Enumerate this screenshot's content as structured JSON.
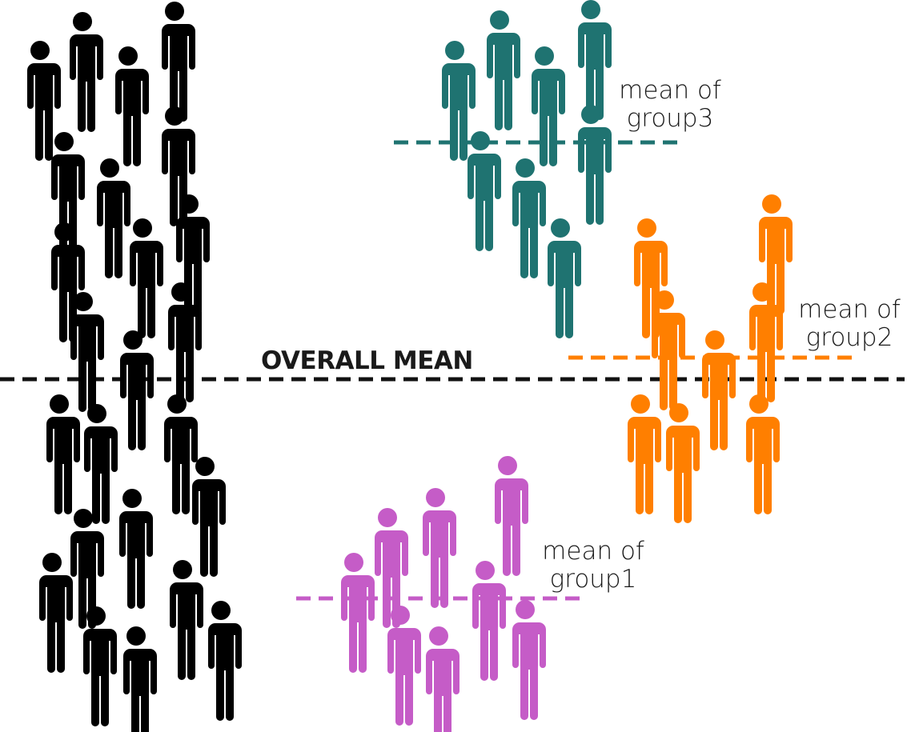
{
  "labels": {
    "overall_mean": "OVERALL MEAN",
    "group3": {
      "line1": "mean of",
      "line2": "group3"
    },
    "group2": {
      "line1": "mean of",
      "line2": "group2"
    },
    "group1": {
      "line1": "mean of",
      "line2": "group1"
    }
  },
  "colors": {
    "overall": "#000000",
    "group3": "#1f7371",
    "group2": "#ff7f00",
    "group1": "#c55cc7",
    "mean_line_overall": "#111111"
  },
  "icon": "person-icon",
  "groups": [
    {
      "id": "overall",
      "color_key": "overall",
      "count": 37
    },
    {
      "id": "group3",
      "color_key": "group3",
      "count": 9
    },
    {
      "id": "group2",
      "color_key": "group2",
      "count": 9
    },
    {
      "id": "group1",
      "color_key": "group1",
      "count": 9
    }
  ]
}
